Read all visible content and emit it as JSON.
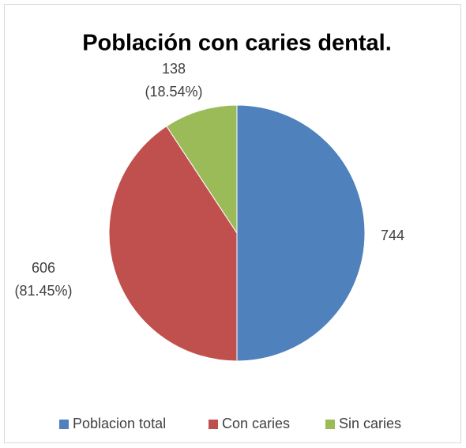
{
  "chart_data": {
    "type": "pie",
    "title": "Población con caries dental.",
    "categories": [
      "Poblacion total",
      "Con caries",
      "Sin caries"
    ],
    "values": [
      744,
      606,
      138
    ],
    "value_labels": [
      [
        "744"
      ],
      [
        "606",
        "(81.45%)"
      ],
      [
        "138",
        "(18.54%)"
      ]
    ],
    "colors": [
      "#4f81bd",
      "#c0504d",
      "#9bbb59"
    ],
    "legend": "bottom"
  }
}
